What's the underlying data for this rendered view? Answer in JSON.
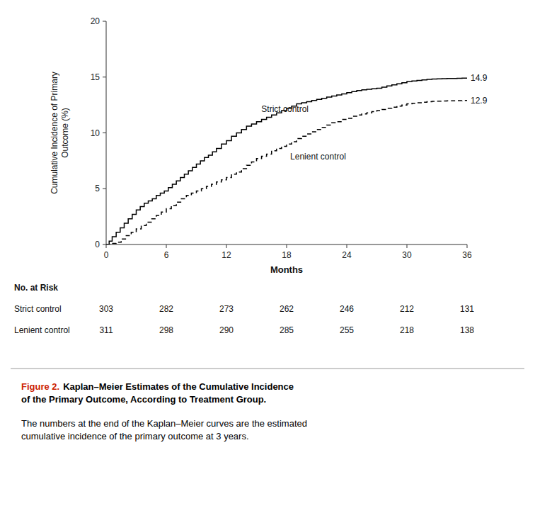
{
  "chart_data": {
    "type": "line",
    "series": [
      {
        "name": "Strict control",
        "color": "#000000",
        "line_style": "solid",
        "x": [
          0,
          0.3,
          0.6,
          1.0,
          1.4,
          1.8,
          2.2,
          2.6,
          3.0,
          3.4,
          3.8,
          4.2,
          4.6,
          5.0,
          5.4,
          5.8,
          6.2,
          6.6,
          7.0,
          7.4,
          7.8,
          8.2,
          8.6,
          9.0,
          9.4,
          9.8,
          10.2,
          10.6,
          11.0,
          11.5,
          12.0,
          12.5,
          13.0,
          13.5,
          14.0,
          14.5,
          15.0,
          15.5,
          16.0,
          16.5,
          17.0,
          17.5,
          18.0,
          18.5,
          19.0,
          19.5,
          20.0,
          20.5,
          21.0,
          21.5,
          22.0,
          22.5,
          23.0,
          23.5,
          24.0,
          24.5,
          25.0,
          25.5,
          26.0,
          26.5,
          27.0,
          27.5,
          28.0,
          28.5,
          29.0,
          29.5,
          30.0,
          30.5,
          31.0,
          31.5,
          32.0,
          32.5,
          33.0,
          33.5,
          34.0,
          34.5,
          35.0,
          35.5,
          36.0
        ],
        "values": [
          0,
          0.3,
          0.7,
          1.1,
          1.5,
          1.9,
          2.3,
          2.7,
          3.1,
          3.4,
          3.7,
          3.9,
          4.1,
          4.4,
          4.6,
          4.8,
          5.1,
          5.4,
          5.7,
          6.0,
          6.3,
          6.6,
          6.9,
          7.2,
          7.5,
          7.8,
          8.0,
          8.3,
          8.6,
          9.0,
          9.3,
          9.7,
          10.0,
          10.3,
          10.6,
          10.8,
          11.0,
          11.2,
          11.4,
          11.6,
          11.8,
          12.0,
          12.2,
          12.4,
          12.6,
          12.7,
          12.8,
          12.9,
          13.0,
          13.1,
          13.2,
          13.3,
          13.4,
          13.5,
          13.6,
          13.7,
          13.8,
          13.85,
          13.9,
          13.95,
          14.0,
          14.1,
          14.2,
          14.3,
          14.4,
          14.5,
          14.6,
          14.65,
          14.7,
          14.75,
          14.8,
          14.82,
          14.84,
          14.86,
          14.87,
          14.88,
          14.89,
          14.9,
          14.9
        ]
      },
      {
        "name": "Lenient control",
        "color": "#000000",
        "line_style": "dashed",
        "x": [
          0,
          0.5,
          1.0,
          1.5,
          2.0,
          2.5,
          3.0,
          3.5,
          4.0,
          4.5,
          5.0,
          5.5,
          6.0,
          6.5,
          7.0,
          7.5,
          8.0,
          8.5,
          9.0,
          9.5,
          10.0,
          10.5,
          11.0,
          11.5,
          12.0,
          12.5,
          13.0,
          13.5,
          14.0,
          14.5,
          15.0,
          15.5,
          16.0,
          16.5,
          17.0,
          17.5,
          18.0,
          18.5,
          19.0,
          19.5,
          20.0,
          20.5,
          21.0,
          21.5,
          22.0,
          22.5,
          23.0,
          23.5,
          24.0,
          24.5,
          25.0,
          25.5,
          26.0,
          26.5,
          27.0,
          27.5,
          28.0,
          28.5,
          29.0,
          29.5,
          30.0,
          30.5,
          31.0,
          31.5,
          32.0,
          32.5,
          33.0,
          33.5,
          34.0,
          34.5,
          35.0,
          35.5,
          36.0
        ],
        "values": [
          0,
          0.1,
          0.2,
          0.5,
          0.8,
          1.1,
          1.4,
          1.7,
          2.0,
          2.3,
          2.6,
          2.9,
          3.2,
          3.5,
          3.8,
          4.1,
          4.4,
          4.6,
          4.8,
          5.0,
          5.2,
          5.4,
          5.6,
          5.8,
          6.0,
          6.3,
          6.5,
          6.8,
          7.1,
          7.4,
          7.7,
          7.9,
          8.1,
          8.4,
          8.6,
          8.8,
          9.0,
          9.2,
          9.5,
          9.7,
          9.9,
          10.1,
          10.3,
          10.5,
          10.7,
          10.9,
          11.0,
          11.2,
          11.3,
          11.5,
          11.6,
          11.7,
          11.8,
          11.9,
          12.0,
          12.1,
          12.2,
          12.3,
          12.4,
          12.5,
          12.6,
          12.65,
          12.7,
          12.75,
          12.8,
          12.82,
          12.84,
          12.86,
          12.87,
          12.88,
          12.89,
          12.9,
          12.9
        ]
      }
    ],
    "annotations": [
      {
        "text": "14.9",
        "x": 36,
        "y": 14.9
      },
      {
        "text": "12.9",
        "x": 36,
        "y": 12.9
      }
    ],
    "x_label": "Months",
    "y_label": "Cumulative Incidence of Primary\nOutcome (%)",
    "xlim": [
      0,
      36
    ],
    "ylim": [
      0,
      20
    ],
    "xticks": [
      0,
      6,
      12,
      18,
      24,
      30,
      36
    ],
    "yticks": [
      0,
      5,
      10,
      15,
      20
    ],
    "grid": false,
    "risk_table": {
      "title": "No. at Risk",
      "months": [
        0,
        6,
        12,
        18,
        24,
        30,
        36
      ],
      "rows": [
        {
          "label": "Strict control",
          "values": [
            303,
            282,
            273,
            262,
            246,
            212,
            131
          ]
        },
        {
          "label": "Lenient control",
          "values": [
            311,
            298,
            290,
            285,
            255,
            218,
            138
          ]
        }
      ]
    },
    "caption": {
      "label": "Figure 2.",
      "label_color": "#cc2200",
      "title": "Kaplan–Meier Estimates of the Cumulative Incidence\nof the Primary Outcome, According to Treatment Group.",
      "text": "The numbers at the end of the Kaplan–Meier curves are the estimated\ncumulative incidence of the primary outcome at 3 years."
    }
  }
}
